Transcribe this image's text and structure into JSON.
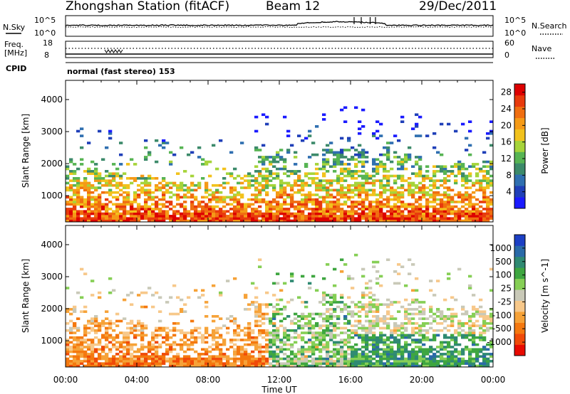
{
  "header": {
    "station": "Zhongshan Station (fitACF)",
    "beam": "Beam 12",
    "date": "29/Dec/2011"
  },
  "params_panel": {
    "nsky_label": "N.Sky",
    "nsky_ticks": [
      "10^5",
      "10^0"
    ],
    "nsearch_label": "N.Search",
    "nsearch_ticks": [
      "10^5",
      "10^0"
    ],
    "freq_label_1": "Freq.",
    "freq_label_2": "[MHz]",
    "freq_ticks": [
      "18",
      "8"
    ],
    "nave_label": "Nave",
    "nave_ticks": [
      "60",
      "0"
    ],
    "cpid_label": "CPID",
    "cpid_text": "normal (fast stereo) 153"
  },
  "colors": {
    "power": [
      "#1a1aff",
      "#1f3fb8",
      "#2f6fb0",
      "#3c8a6a",
      "#57b453",
      "#a6d43a",
      "#f2c21c",
      "#f59a16",
      "#f06e10",
      "#e83a0c",
      "#dd0000"
    ],
    "velocity": [
      "#e80a00",
      "#f04a08",
      "#f4780f",
      "#f6a238",
      "#f7c88a",
      "#c9c9b8",
      "#86cf55",
      "#3ea640",
      "#2f8a72",
      "#2a6aa8",
      "#1c3fc4"
    ]
  },
  "chart_data": [
    {
      "type": "heatmap",
      "title": "Power",
      "xlabel": "Time UT",
      "ylabel": "Slant Range [km]",
      "x_ticks": [
        "00:00",
        "04:00",
        "08:00",
        "12:00",
        "16:00",
        "20:00",
        "00:00"
      ],
      "x_range_hours": [
        0,
        24
      ],
      "y_ticks": [
        1000,
        2000,
        3000,
        4000
      ],
      "y_range_km": [
        180,
        4600
      ],
      "colorbar_label": "Power [dB]",
      "colorbar_ticks": [
        "28",
        "24",
        "20",
        "16",
        "12",
        "8",
        "4"
      ],
      "colorbar_range": [
        0,
        30
      ]
    },
    {
      "type": "heatmap",
      "title": "Velocity",
      "xlabel": "Time UT",
      "ylabel": "Slant Range [km]",
      "x_ticks": [
        "00:00",
        "04:00",
        "08:00",
        "12:00",
        "16:00",
        "20:00",
        "00:00"
      ],
      "x_range_hours": [
        0,
        24
      ],
      "y_ticks": [
        1000,
        2000,
        3000,
        4000
      ],
      "y_range_km": [
        180,
        4600
      ],
      "colorbar_label": "Velocity [m s^-1]",
      "colorbar_ticks": [
        "1000",
        "500",
        "100",
        "25",
        "-25",
        "-100",
        "-500",
        "-1000"
      ],
      "colorbar_range": [
        -1000,
        1000
      ]
    }
  ]
}
